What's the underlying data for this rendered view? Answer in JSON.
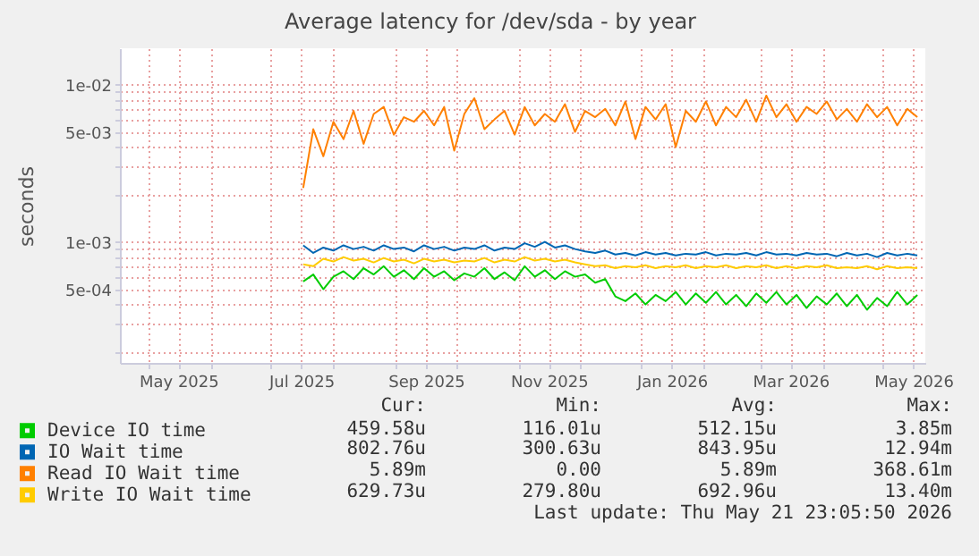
{
  "chart_data": {
    "type": "line",
    "title": "Average latency for /dev/sda - by year",
    "ylabel": "seconds",
    "log": "y",
    "grid": true,
    "legend": "bottom",
    "xlim": [
      "2025-04-16T23:05",
      "2026-05-21T23:05"
    ],
    "xticks": [
      {
        "value": "2025-05-01",
        "label": null
      },
      {
        "value": "2025-05-16",
        "label": "May 2025"
      },
      {
        "value": "2025-06-01",
        "label": null
      },
      {
        "value": "2025-07-01",
        "label": null
      },
      {
        "value": "2025-07-16",
        "label": "Jul 2025"
      },
      {
        "value": "2025-08-01",
        "label": null
      },
      {
        "value": "2025-09-01",
        "label": null
      },
      {
        "value": "2025-09-16",
        "label": "Sep 2025"
      },
      {
        "value": "2025-10-01",
        "label": null
      },
      {
        "value": "2025-11-01",
        "label": null
      },
      {
        "value": "2025-11-16",
        "label": "Nov 2025"
      },
      {
        "value": "2025-12-01",
        "label": null
      },
      {
        "value": "2026-01-01",
        "label": null
      },
      {
        "value": "2026-01-16",
        "label": "Jan 2026"
      },
      {
        "value": "2026-02-01",
        "label": null
      },
      {
        "value": "2026-03-01",
        "label": null
      },
      {
        "value": "2026-03-16",
        "label": "Mar 2026"
      },
      {
        "value": "2026-04-01",
        "label": null
      },
      {
        "value": "2026-05-01",
        "label": null
      },
      {
        "value": "2026-05-16",
        "label": "May 2026"
      }
    ],
    "ylim": [
      0.00017,
      0.017
    ],
    "yticks": [
      {
        "value": 0.0002,
        "label": null
      },
      {
        "value": 0.0003,
        "label": null
      },
      {
        "value": 0.0004,
        "label": null
      },
      {
        "value": 0.0005,
        "label": "5e-04"
      },
      {
        "value": 0.0006,
        "label": null
      },
      {
        "value": 0.0007,
        "label": null
      },
      {
        "value": 0.0008,
        "label": null
      },
      {
        "value": 0.0009,
        "label": null
      },
      {
        "value": 0.001,
        "label": "1e-03"
      },
      {
        "value": 0.002,
        "label": null
      },
      {
        "value": 0.003,
        "label": null
      },
      {
        "value": 0.004,
        "label": null
      },
      {
        "value": 0.005,
        "label": "5e-03"
      },
      {
        "value": 0.006,
        "label": null
      },
      {
        "value": 0.007,
        "label": null
      },
      {
        "value": 0.008,
        "label": null
      },
      {
        "value": 0.009,
        "label": null
      },
      {
        "value": 0.01,
        "label": "1e-02"
      }
    ],
    "x": [
      "2025-07-17",
      "2025-07-22",
      "2025-07-27",
      "2025-08-01",
      "2025-08-06",
      "2025-08-11",
      "2025-08-16",
      "2025-08-21",
      "2025-08-26",
      "2025-08-31",
      "2025-09-05",
      "2025-09-10",
      "2025-09-15",
      "2025-09-20",
      "2025-09-25",
      "2025-09-30",
      "2025-10-05",
      "2025-10-10",
      "2025-10-15",
      "2025-10-20",
      "2025-10-25",
      "2025-10-30",
      "2025-11-04",
      "2025-11-09",
      "2025-11-14",
      "2025-11-19",
      "2025-11-24",
      "2025-11-29",
      "2025-12-04",
      "2025-12-09",
      "2025-12-14",
      "2025-12-19",
      "2025-12-24",
      "2025-12-29",
      "2026-01-03",
      "2026-01-08",
      "2026-01-13",
      "2026-01-18",
      "2026-01-23",
      "2026-01-28",
      "2026-02-02",
      "2026-02-07",
      "2026-02-12",
      "2026-02-17",
      "2026-02-22",
      "2026-02-27",
      "2026-03-04",
      "2026-03-09",
      "2026-03-14",
      "2026-03-19",
      "2026-03-24",
      "2026-03-29",
      "2026-04-03",
      "2026-04-08",
      "2026-04-13",
      "2026-04-18",
      "2026-04-23",
      "2026-04-28",
      "2026-05-03",
      "2026-05-08",
      "2026-05-13",
      "2026-05-18"
    ],
    "series": [
      {
        "name": "Device IO time",
        "color": "#00cc00",
        "values": [
          0.00056,
          0.00062,
          0.0005,
          0.0006,
          0.00065,
          0.00058,
          0.00068,
          0.00062,
          0.0007,
          0.0006,
          0.00066,
          0.00058,
          0.00068,
          0.0006,
          0.00065,
          0.00057,
          0.00063,
          0.0006,
          0.00068,
          0.00058,
          0.00064,
          0.00057,
          0.0007,
          0.0006,
          0.00066,
          0.00058,
          0.00065,
          0.0006,
          0.00062,
          0.00055,
          0.00058,
          0.00045,
          0.00042,
          0.00047,
          0.0004,
          0.00046,
          0.00042,
          0.00048,
          0.0004,
          0.00047,
          0.00041,
          0.00048,
          0.0004,
          0.00046,
          0.00039,
          0.00047,
          0.00041,
          0.00048,
          0.0004,
          0.00046,
          0.00038,
          0.00045,
          0.0004,
          0.00047,
          0.00039,
          0.00046,
          0.00037,
          0.00044,
          0.00039,
          0.00048,
          0.0004,
          0.00046
        ]
      },
      {
        "name": "IO Wait time",
        "color": "#0066b3",
        "values": [
          0.00095,
          0.00085,
          0.00092,
          0.00088,
          0.00095,
          0.0009,
          0.00093,
          0.00088,
          0.00095,
          0.0009,
          0.00092,
          0.00087,
          0.00095,
          0.0009,
          0.00093,
          0.00088,
          0.00092,
          0.0009,
          0.00095,
          0.00088,
          0.00092,
          0.0009,
          0.00098,
          0.00093,
          0.001,
          0.00092,
          0.00095,
          0.0009,
          0.00087,
          0.00085,
          0.00088,
          0.00083,
          0.00085,
          0.00082,
          0.00086,
          0.00083,
          0.00085,
          0.00082,
          0.00084,
          0.00083,
          0.00086,
          0.00082,
          0.00084,
          0.00083,
          0.00085,
          0.00082,
          0.00086,
          0.00083,
          0.00084,
          0.00082,
          0.00085,
          0.00083,
          0.00084,
          0.00081,
          0.00085,
          0.00082,
          0.00084,
          0.0008,
          0.00085,
          0.00082,
          0.00084,
          0.00082
        ]
      },
      {
        "name": "Read IO Wait time",
        "color": "#ff8000",
        "values": [
          0.0022,
          0.0052,
          0.0035,
          0.0058,
          0.0045,
          0.0068,
          0.0042,
          0.0065,
          0.0072,
          0.0048,
          0.0062,
          0.0058,
          0.0068,
          0.0055,
          0.0072,
          0.0038,
          0.0065,
          0.0082,
          0.0052,
          0.006,
          0.0068,
          0.0048,
          0.0072,
          0.0055,
          0.0065,
          0.0058,
          0.0075,
          0.005,
          0.0068,
          0.0062,
          0.007,
          0.0055,
          0.0078,
          0.0045,
          0.0072,
          0.006,
          0.0075,
          0.004,
          0.0068,
          0.0058,
          0.0078,
          0.0055,
          0.0072,
          0.0062,
          0.008,
          0.0058,
          0.0085,
          0.0062,
          0.0075,
          0.0058,
          0.0072,
          0.0065,
          0.0078,
          0.006,
          0.007,
          0.0058,
          0.0075,
          0.0062,
          0.0072,
          0.0055,
          0.007,
          0.0062
        ]
      },
      {
        "name": "Write IO Wait time",
        "color": "#ffcc00",
        "values": [
          0.00072,
          0.0007,
          0.00078,
          0.00075,
          0.0008,
          0.00076,
          0.00078,
          0.00074,
          0.00079,
          0.00075,
          0.00077,
          0.00073,
          0.00078,
          0.00075,
          0.00077,
          0.00074,
          0.00076,
          0.00075,
          0.00079,
          0.00074,
          0.00077,
          0.00075,
          0.0008,
          0.00076,
          0.00078,
          0.00075,
          0.00077,
          0.00074,
          0.00072,
          0.0007,
          0.00071,
          0.00068,
          0.0007,
          0.00069,
          0.00071,
          0.00068,
          0.0007,
          0.00069,
          0.00071,
          0.00068,
          0.0007,
          0.00069,
          0.00071,
          0.00068,
          0.0007,
          0.00069,
          0.00071,
          0.00068,
          0.0007,
          0.00068,
          0.0007,
          0.00069,
          0.00071,
          0.00068,
          0.00069,
          0.00068,
          0.0007,
          0.00067,
          0.0007,
          0.00068,
          0.00069,
          0.00068
        ]
      }
    ],
    "annotations": [
      "Cur:",
      "Min:",
      "Avg:",
      "Max:",
      "459.58u",
      "116.01u",
      "512.15u",
      "3.85m",
      "802.76u",
      "300.63u",
      "843.95u",
      "12.94m",
      "5.89m",
      "0.00",
      "5.89m",
      "368.61m",
      "629.73u",
      "279.80u",
      "692.96u",
      "13.40m",
      "Last update: Thu May 21 23:05:50 2026"
    ]
  }
}
